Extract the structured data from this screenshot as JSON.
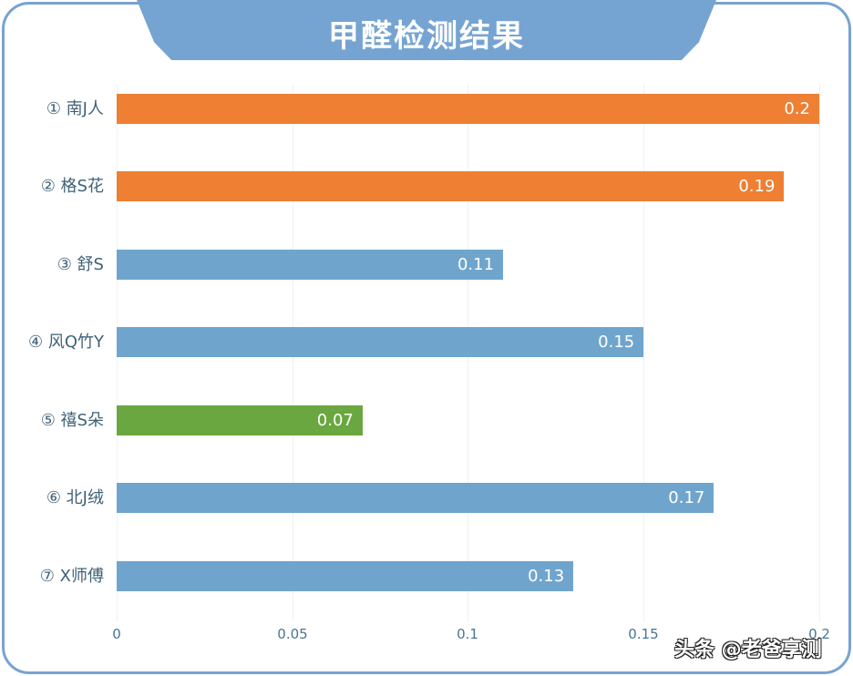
{
  "header": {
    "title": "甲醛检测结果"
  },
  "colors": {
    "orange": "#ee7f33",
    "blue": "#6fa5cd",
    "green": "#6aa740",
    "frame": "#78a3cf",
    "title_bg": "#76a4d2"
  },
  "chart_data": {
    "type": "bar",
    "orientation": "horizontal",
    "title": "甲醛检测结果",
    "xlabel": "",
    "ylabel": "",
    "xlim": [
      0,
      0.2
    ],
    "grid": true,
    "categories": [
      "① 南J人",
      "② 格S花",
      "③ 舒S",
      "④ 风Q竹Y",
      "⑤ 禧S朵",
      "⑥ 北J绒",
      "⑦ X师傅"
    ],
    "values": [
      0.2,
      0.19,
      0.11,
      0.15,
      0.07,
      0.17,
      0.13
    ],
    "value_labels": [
      "0.2",
      "0.19",
      "0.11",
      "0.15",
      "0.07",
      "0.17",
      "0.13"
    ],
    "bar_colors": [
      "#ee7f33",
      "#ee7f33",
      "#6fa5cd",
      "#6fa5cd",
      "#6aa740",
      "#6fa5cd",
      "#6fa5cd"
    ],
    "x_ticks": [
      "0",
      "0.05",
      "0.1",
      "0.15",
      "0.2"
    ]
  },
  "watermark": {
    "credit": "头条 @老爸享测"
  }
}
